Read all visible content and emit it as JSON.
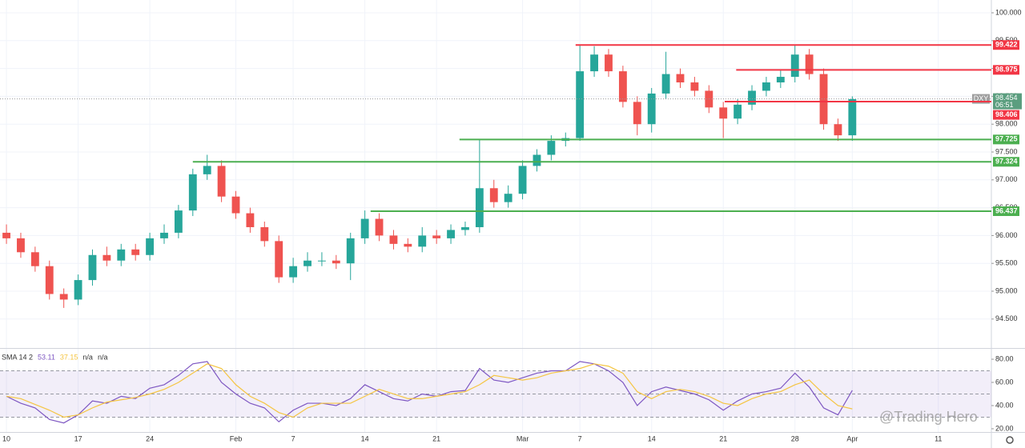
{
  "chart_data": [
    {
      "type": "candlestick",
      "symbol": "DXY",
      "last_price": 98.454,
      "countdown": "06:51",
      "up_color": "#26a69a",
      "down_color": "#ef5350",
      "grid": true,
      "x": [
        0,
        1,
        2,
        3,
        4,
        5,
        6,
        7,
        8,
        9,
        10,
        11,
        12,
        13,
        14,
        15,
        16,
        17,
        18,
        19,
        20,
        21,
        22,
        23,
        24,
        25,
        26,
        27,
        28,
        29,
        30,
        31,
        32,
        33,
        34,
        35,
        36,
        37,
        38,
        39,
        40,
        41,
        42,
        43,
        44,
        45,
        46,
        47,
        48,
        49,
        50,
        51,
        52,
        53,
        54,
        55,
        56,
        57,
        58,
        59
      ],
      "open": [
        96.05,
        95.95,
        95.7,
        95.45,
        94.95,
        94.85,
        95.2,
        95.65,
        95.55,
        95.75,
        95.65,
        95.95,
        96.05,
        96.45,
        97.1,
        97.25,
        96.7,
        96.4,
        96.15,
        95.9,
        95.25,
        95.45,
        95.55,
        95.55,
        95.5,
        95.95,
        96.3,
        96.0,
        95.85,
        95.8,
        96.0,
        95.95,
        96.1,
        96.15,
        96.85,
        96.6,
        96.75,
        97.25,
        97.45,
        97.7,
        97.75,
        98.95,
        99.25,
        98.95,
        98.4,
        98.0,
        98.55,
        98.9,
        98.75,
        98.6,
        98.3,
        98.1,
        98.35,
        98.6,
        98.75,
        98.85,
        99.25,
        98.9,
        98.0,
        97.8
      ],
      "high": [
        96.2,
        96.05,
        95.8,
        95.55,
        95.05,
        95.3,
        95.75,
        95.8,
        95.85,
        95.85,
        96.05,
        96.2,
        96.55,
        97.2,
        97.45,
        97.35,
        96.8,
        96.5,
        96.25,
        96.0,
        95.6,
        95.7,
        95.7,
        95.65,
        96.05,
        96.45,
        96.4,
        96.1,
        95.95,
        96.15,
        96.1,
        96.2,
        96.25,
        97.72,
        97.0,
        96.9,
        97.35,
        97.55,
        97.8,
        97.85,
        99.42,
        99.4,
        99.35,
        99.05,
        98.5,
        98.65,
        99.3,
        99.0,
        98.85,
        98.7,
        98.4,
        98.45,
        98.7,
        98.85,
        98.98,
        99.42,
        99.35,
        99.0,
        98.1,
        98.5
      ],
      "low": [
        95.85,
        95.6,
        95.35,
        94.85,
        94.7,
        94.75,
        95.1,
        95.45,
        95.45,
        95.55,
        95.55,
        95.85,
        95.95,
        96.35,
        97.0,
        96.6,
        96.3,
        96.05,
        95.8,
        95.15,
        95.15,
        95.35,
        95.45,
        95.4,
        95.2,
        95.85,
        95.9,
        95.75,
        95.7,
        95.7,
        95.85,
        95.85,
        96.0,
        96.05,
        96.5,
        96.5,
        96.65,
        97.15,
        97.35,
        97.6,
        97.7,
        98.85,
        98.85,
        98.3,
        97.8,
        97.85,
        98.45,
        98.65,
        98.5,
        98.2,
        97.75,
        98.0,
        98.25,
        98.5,
        98.65,
        98.75,
        98.8,
        97.9,
        97.7,
        97.7
      ],
      "close": [
        95.95,
        95.7,
        95.45,
        94.95,
        94.85,
        95.2,
        95.65,
        95.55,
        95.75,
        95.65,
        95.95,
        96.05,
        96.45,
        97.1,
        97.25,
        96.7,
        96.4,
        96.15,
        95.9,
        95.25,
        95.45,
        95.55,
        95.55,
        95.5,
        95.95,
        96.3,
        96.0,
        95.85,
        95.8,
        96.0,
        95.95,
        96.1,
        96.15,
        96.85,
        96.6,
        96.75,
        97.25,
        97.45,
        97.7,
        97.75,
        98.95,
        99.25,
        98.95,
        98.4,
        98.0,
        98.55,
        98.9,
        98.75,
        98.6,
        98.3,
        98.1,
        98.35,
        98.6,
        98.75,
        98.85,
        99.25,
        98.9,
        98.0,
        97.8,
        98.45
      ],
      "levels": [
        {
          "value": 99.422,
          "color": "#f23645",
          "x_start": 39.7
        },
        {
          "value": 98.975,
          "color": "#f23645",
          "x_start": 50.9
        },
        {
          "value": 98.406,
          "color": "#f23645",
          "x_start": 50.1
        },
        {
          "value": 97.725,
          "color": "#4caf50",
          "x_start": 31.6
        },
        {
          "value": 97.324,
          "color": "#4caf50",
          "x_start": 13
        },
        {
          "value": 96.437,
          "color": "#4caf50",
          "x_start": 25.4
        }
      ],
      "xlim": [
        -0.45,
        68.7
      ],
      "xticks": [
        {
          "value": 0,
          "label": "10"
        },
        {
          "value": 5,
          "label": "17"
        },
        {
          "value": 10,
          "label": "24"
        },
        {
          "value": 16,
          "label": "Feb"
        },
        {
          "value": 20,
          "label": "7"
        },
        {
          "value": 25,
          "label": "14"
        },
        {
          "value": 30,
          "label": "21"
        },
        {
          "value": 36,
          "label": "Mar"
        },
        {
          "value": 40,
          "label": "7"
        },
        {
          "value": 45,
          "label": "14"
        },
        {
          "value": 50,
          "label": "21"
        },
        {
          "value": 55,
          "label": "28"
        },
        {
          "value": 59,
          "label": "Apr"
        },
        {
          "value": 65,
          "label": "11"
        }
      ],
      "ylim": [
        93.98,
        100.23
      ],
      "yticks": [
        {
          "value": 94.5,
          "label": "94.500"
        },
        {
          "value": 95,
          "label": "95.000"
        },
        {
          "value": 95.5,
          "label": "95.500"
        },
        {
          "value": 96,
          "label": "96.000"
        },
        {
          "value": 96.5,
          "label": "96.500"
        },
        {
          "value": 97,
          "label": "97.000"
        },
        {
          "value": 97.5,
          "label": "97.500"
        },
        {
          "value": 98,
          "label": "98.000"
        },
        {
          "value": 98.5,
          "label": "98.500"
        },
        {
          "value": 99,
          "label": "99.000"
        },
        {
          "value": 99.5,
          "label": "99.500"
        },
        {
          "value": 100,
          "label": "100.000"
        }
      ]
    },
    {
      "type": "line",
      "title": "SMA 14 2",
      "na_labels": [
        "n/a",
        "n/a"
      ],
      "watermark": "@Trading Hero",
      "x": [
        0,
        1,
        2,
        3,
        4,
        5,
        6,
        7,
        8,
        9,
        10,
        11,
        12,
        13,
        14,
        15,
        16,
        17,
        18,
        19,
        20,
        21,
        22,
        23,
        24,
        25,
        26,
        27,
        28,
        29,
        30,
        31,
        32,
        33,
        34,
        35,
        36,
        37,
        38,
        39,
        40,
        41,
        42,
        43,
        44,
        45,
        46,
        47,
        48,
        49,
        50,
        51,
        52,
        53,
        54,
        55,
        56,
        57,
        58,
        59
      ],
      "series": [
        {
          "color": "#7e57c2",
          "values": [
            48,
            42,
            38,
            28,
            25,
            32,
            44,
            42,
            48,
            46,
            55,
            58,
            66,
            76,
            78,
            60,
            50,
            42,
            38,
            26,
            36,
            42,
            42,
            40,
            46,
            58,
            52,
            46,
            44,
            50,
            48,
            52,
            53,
            72,
            62,
            60,
            64,
            68,
            70,
            70,
            78,
            76,
            70,
            60,
            40,
            52,
            56,
            53,
            50,
            45,
            36,
            44,
            50,
            52,
            55,
            68,
            56,
            38,
            32,
            53.11
          ]
        },
        {
          "color": "#f5c542",
          "values": [
            48,
            46,
            41,
            36,
            30,
            32,
            38,
            43,
            45,
            47,
            50,
            54,
            60,
            68,
            76,
            72,
            58,
            48,
            42,
            34,
            30,
            38,
            42,
            42,
            42,
            48,
            54,
            50,
            46,
            46,
            48,
            50,
            52,
            58,
            66,
            64,
            62,
            64,
            68,
            70,
            72,
            76,
            74,
            68,
            52,
            46,
            52,
            54,
            52,
            48,
            42,
            40,
            46,
            50,
            52,
            58,
            62,
            50,
            40,
            37.15
          ]
        }
      ],
      "band": [
        30,
        70
      ],
      "midline": 50,
      "band_color": "#7e57c2",
      "xlim": [
        -0.45,
        68.7
      ],
      "ylim": [
        17.2,
        89
      ],
      "yticks": [
        {
          "value": 20,
          "label": "20.00"
        },
        {
          "value": 40,
          "label": "40.00"
        },
        {
          "value": 60,
          "label": "60.00"
        },
        {
          "value": 80,
          "label": "80.00"
        }
      ]
    }
  ]
}
